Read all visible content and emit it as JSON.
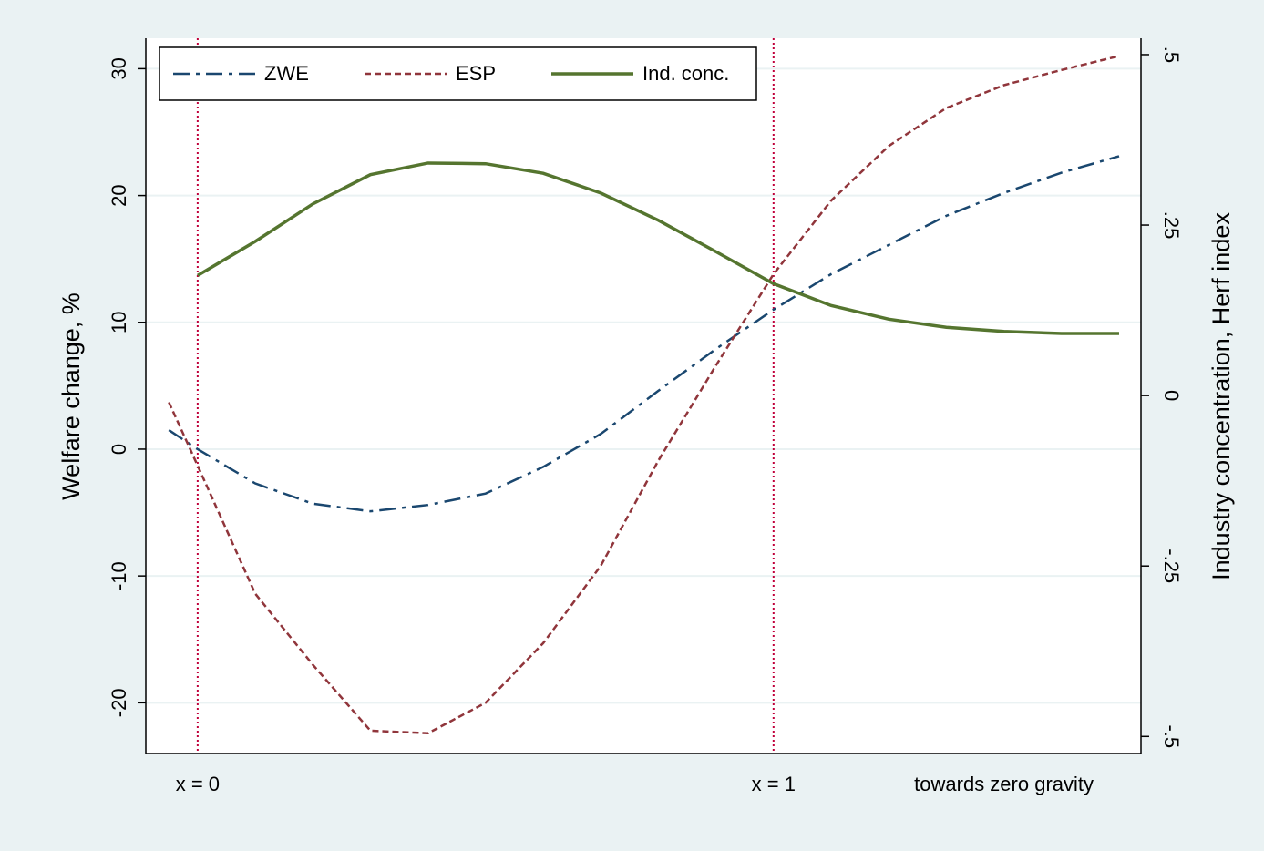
{
  "chart_data": {
    "type": "line",
    "x": [
      -0.05,
      0,
      0.1,
      0.2,
      0.3,
      0.4,
      0.5,
      0.6,
      0.7,
      0.8,
      0.9,
      1.0,
      1.1,
      1.2,
      1.3,
      1.4,
      1.5,
      1.6
    ],
    "xlim": [
      -0.09,
      1.638
    ],
    "xticks": [
      {
        "value": 0,
        "label": "x = 0"
      },
      {
        "value": 1,
        "label": "x = 1"
      },
      {
        "value": 1.4,
        "label": "towards zero gravity"
      }
    ],
    "xlines": [
      0,
      1
    ],
    "ylabel": "Welfare change, %",
    "y2label": "Industry concentration, Herf index",
    "ylim": [
      -24.0,
      32.4
    ],
    "yticks": [
      -20,
      -10,
      0,
      10,
      20,
      30
    ],
    "y2lim": [
      -0.525,
      0.524
    ],
    "y2ticks": [
      {
        "value": -0.5,
        "label": "-.5"
      },
      {
        "value": -0.25,
        "label": "-.25"
      },
      {
        "value": 0,
        "label": "0"
      },
      {
        "value": 0.25,
        "label": ".25"
      },
      {
        "value": 0.5,
        "label": ".5"
      }
    ],
    "grid": true,
    "legend": "top",
    "series": [
      {
        "name": "ZWE",
        "color": "#1a476f",
        "dash": "dashdot",
        "values": [
          1.5,
          0,
          -2.7,
          -4.3,
          -4.9,
          -4.4,
          -3.5,
          -1.4,
          1.2,
          4.6,
          7.9,
          11.0,
          13.8,
          16.1,
          18.4,
          20.2,
          21.8,
          23.1
        ]
      },
      {
        "name": "ESP",
        "color": "#90353b",
        "dash": "dash",
        "values": [
          3.7,
          -1.3,
          -11.4,
          -17.0,
          -22.2,
          -22.4,
          -20.0,
          -15.3,
          -9.2,
          -0.9,
          6.6,
          13.8,
          19.6,
          23.9,
          26.9,
          28.7,
          29.9,
          31.0
        ]
      },
      {
        "name": "Ind. conc.",
        "color": "#55752f",
        "dash": "solid",
        "axis": "y2",
        "values": [
          null,
          0.176,
          0.226,
          0.281,
          0.324,
          0.341,
          0.34,
          0.326,
          0.297,
          0.257,
          0.211,
          0.164,
          0.132,
          0.112,
          0.1,
          0.094,
          0.091,
          0.091
        ]
      }
    ]
  }
}
